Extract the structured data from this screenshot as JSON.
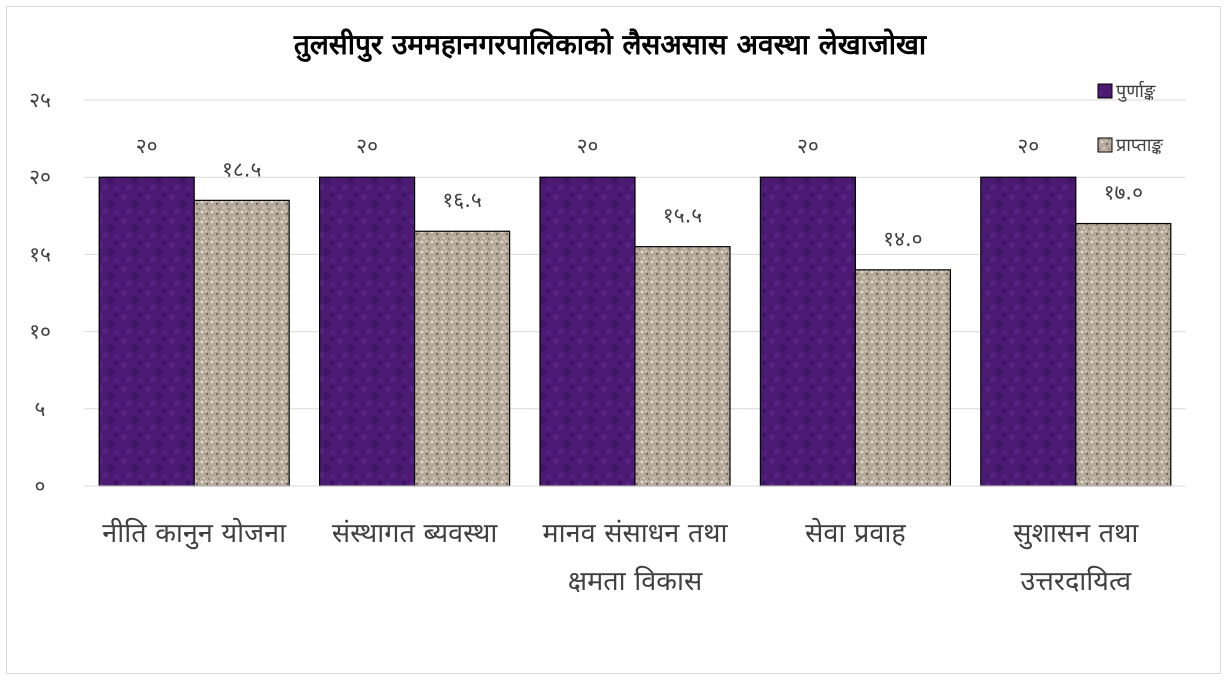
{
  "chart_data": {
    "type": "bar",
    "title": "तुलसीपुर उममहानगरपालिकाको लैसअसास अवस्था लेखाजोखा",
    "categories": [
      [
        "नीति कानुन योजना"
      ],
      [
        "संस्थागत ब्यवस्था"
      ],
      [
        "मानव संसाधन तथा",
        "क्षमता विकास"
      ],
      [
        "सेवा प्रवाह"
      ],
      [
        "सुशासन तथा",
        "उत्तरदायित्व"
      ]
    ],
    "series": [
      {
        "name": "पुर्णाङ्क",
        "color": "#4b1a73",
        "values": [
          20,
          20,
          20,
          20,
          20
        ],
        "labels": [
          "२०",
          "२०",
          "२०",
          "२०",
          "२०"
        ]
      },
      {
        "name": "प्राप्ताङ्क",
        "color": "#b5a99a",
        "values": [
          18.5,
          16.5,
          15.5,
          14.0,
          17.0
        ],
        "labels": [
          "१८.५",
          "१६.५",
          "१५.५",
          "१४.०",
          "१७.०"
        ]
      }
    ],
    "ylim": [
      0,
      25
    ],
    "yticks": [
      0,
      5,
      10,
      15,
      20,
      25
    ],
    "ytick_labels": [
      "०",
      "५",
      "१०",
      "१५",
      "२०",
      "२५"
    ],
    "grid": true,
    "legend_position": "top-right"
  }
}
